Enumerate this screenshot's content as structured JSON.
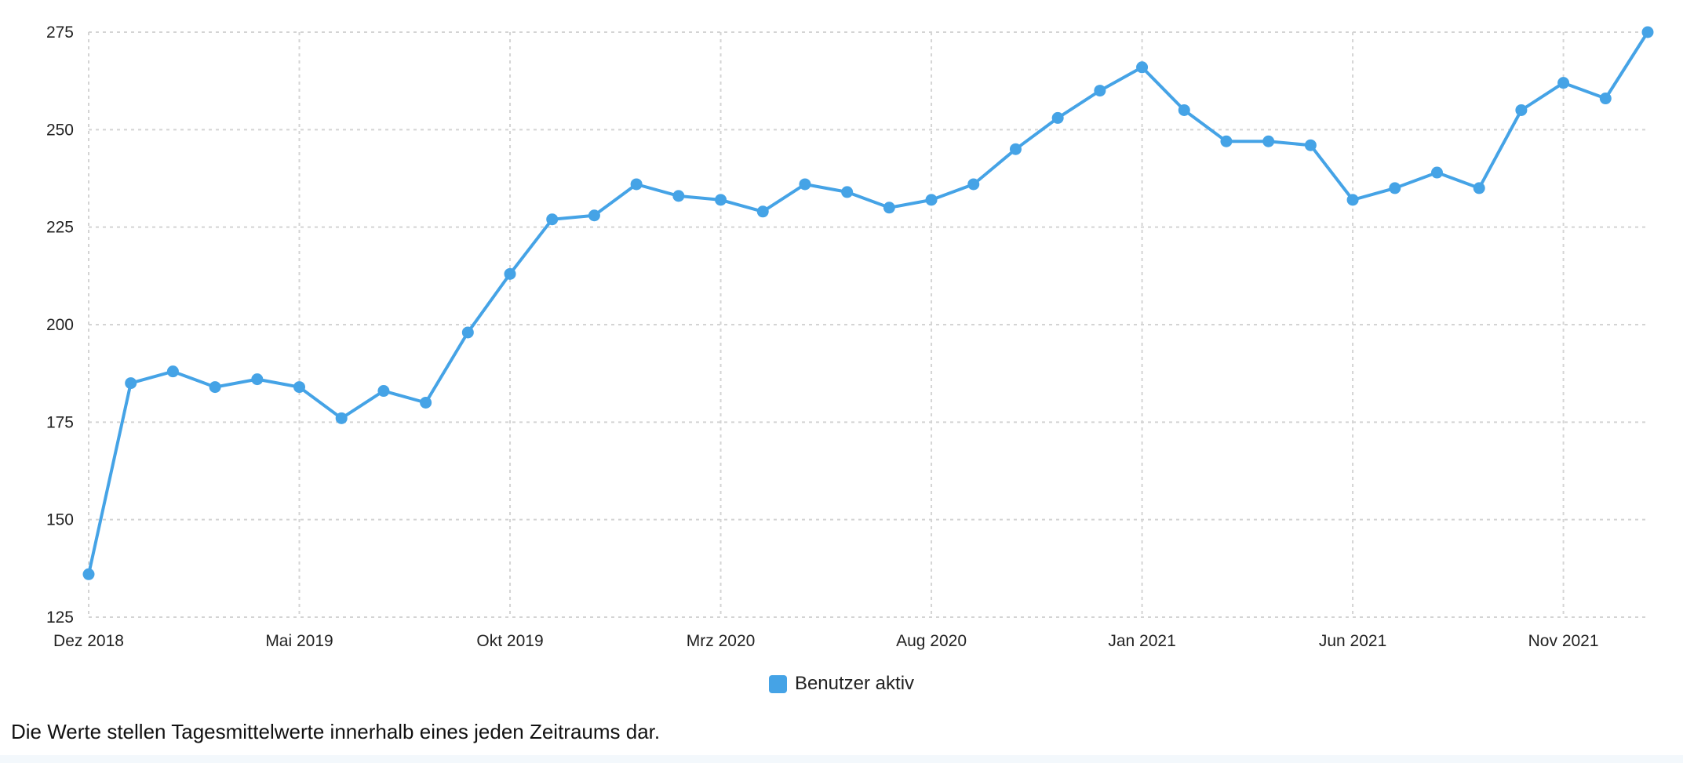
{
  "chart_data": {
    "type": "line",
    "title": "",
    "xlabel": "",
    "ylabel": "",
    "ylim": [
      125,
      275
    ],
    "yticks": [
      125,
      150,
      175,
      200,
      225,
      250,
      275
    ],
    "x_ticks": [
      {
        "label": "Dez 2018",
        "date": "2018-12"
      },
      {
        "label": "Mai 2019",
        "date": "2019-05"
      },
      {
        "label": "Okt 2019",
        "date": "2019-10"
      },
      {
        "label": "Mrz 2020",
        "date": "2020-03"
      },
      {
        "label": "Aug 2020",
        "date": "2020-08"
      },
      {
        "label": "Jan 2021",
        "date": "2021-01"
      },
      {
        "label": "Jun 2021",
        "date": "2021-06"
      },
      {
        "label": "Nov 2021",
        "date": "2021-11"
      }
    ],
    "grid": true,
    "legend_position": "bottom-center",
    "x": [
      "2018-12",
      "2019-01",
      "2019-02",
      "2019-03",
      "2019-04",
      "2019-05",
      "2019-06",
      "2019-07",
      "2019-08",
      "2019-09",
      "2019-10",
      "2019-11",
      "2019-12",
      "2020-01",
      "2020-02",
      "2020-03",
      "2020-04",
      "2020-05",
      "2020-06",
      "2020-07",
      "2020-08",
      "2020-09",
      "2020-10",
      "2020-11",
      "2020-12",
      "2021-01",
      "2021-02",
      "2021-03",
      "2021-04",
      "2021-05",
      "2021-06",
      "2021-07",
      "2021-08",
      "2021-09",
      "2021-10",
      "2021-11",
      "2021-12",
      "2022-01"
    ],
    "series": [
      {
        "name": "Benutzer aktiv",
        "color": "#45a3e6",
        "values": [
          136,
          185,
          188,
          184,
          186,
          184,
          176,
          183,
          180,
          198,
          213,
          227,
          228,
          236,
          233,
          232,
          229,
          236,
          234,
          230,
          232,
          236,
          245,
          253,
          260,
          266,
          255,
          247,
          247,
          246,
          232,
          235,
          239,
          235,
          255,
          262,
          258,
          275
        ]
      }
    ]
  },
  "legend": {
    "label": "Benutzer aktiv",
    "color": "#45a3e6"
  },
  "footnote": "Die Werte stellen Tagesmittelwerte innerhalb eines jeden Zeitraums dar."
}
